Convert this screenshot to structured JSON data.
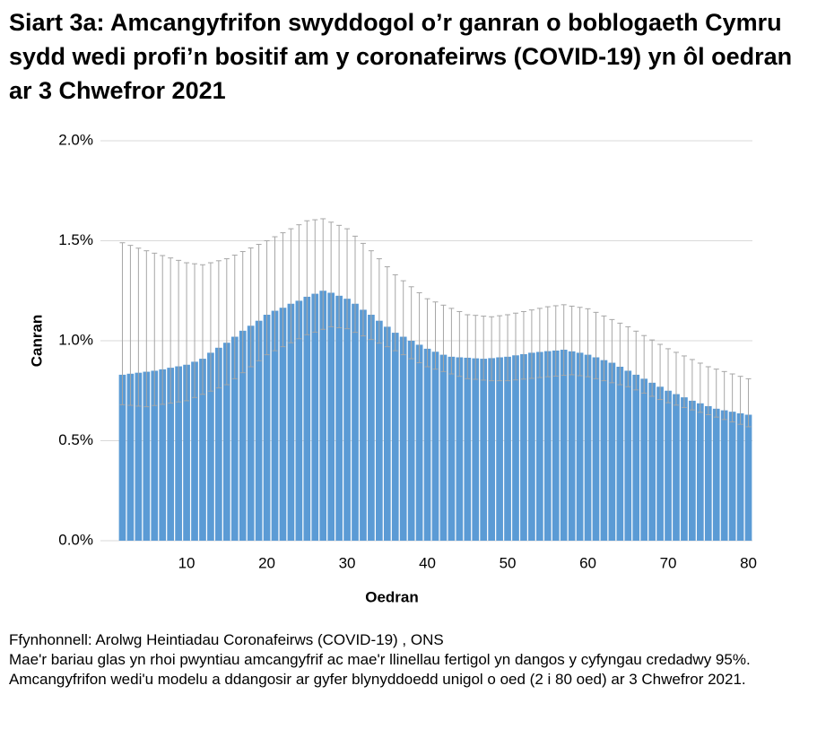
{
  "chart_data": {
    "type": "bar",
    "title": "Siart 3a: Amcangyfrifon swyddogol o’r ganran o boblogaeth Cymru sydd wedi profi’n bositif am y coronafeirws (COVID-19) yn ôl oedran ar 3 Chwefror 2021",
    "x_label": "Oedran",
    "y_label": "Canran",
    "source": "Ffynhonnell: Arolwg Heintiadau Coronafeirws (COVID-19) , ONS",
    "note": "Mae'r bariau glas yn rhoi pwyntiau amcangyfrif ac mae'r llinellau fertigol yn dangos y cyfyngau credadwy 95%. Amcangyfrifon wedi'u modelu a ddangosir ar gyfer blynyddoedd unigol o oed (2 i 80 oed) ar 3 Chwefror 2021.",
    "color": "#5b9bd5",
    "error_color": "#a6a6a6",
    "grid": true,
    "x": [
      2,
      3,
      4,
      5,
      6,
      7,
      8,
      9,
      10,
      11,
      12,
      13,
      14,
      15,
      16,
      17,
      18,
      19,
      20,
      21,
      22,
      23,
      24,
      25,
      26,
      27,
      28,
      29,
      30,
      31,
      32,
      33,
      34,
      35,
      36,
      37,
      38,
      39,
      40,
      41,
      42,
      43,
      44,
      45,
      46,
      47,
      48,
      49,
      50,
      51,
      52,
      53,
      54,
      55,
      56,
      57,
      58,
      59,
      60,
      61,
      62,
      63,
      64,
      65,
      66,
      67,
      68,
      69,
      70,
      71,
      72,
      73,
      74,
      75,
      76,
      77,
      78,
      79,
      80
    ],
    "values": [
      0.83,
      0.835,
      0.84,
      0.845,
      0.85,
      0.857,
      0.865,
      0.872,
      0.88,
      0.895,
      0.91,
      0.94,
      0.965,
      0.99,
      1.02,
      1.05,
      1.075,
      1.1,
      1.13,
      1.15,
      1.165,
      1.185,
      1.2,
      1.22,
      1.235,
      1.25,
      1.24,
      1.225,
      1.21,
      1.185,
      1.155,
      1.13,
      1.1,
      1.07,
      1.04,
      1.02,
      1.0,
      0.98,
      0.96,
      0.945,
      0.93,
      0.92,
      0.917,
      0.915,
      0.912,
      0.91,
      0.913,
      0.917,
      0.92,
      0.927,
      0.933,
      0.94,
      0.944,
      0.948,
      0.951,
      0.955,
      0.947,
      0.94,
      0.93,
      0.917,
      0.903,
      0.89,
      0.87,
      0.85,
      0.83,
      0.81,
      0.79,
      0.77,
      0.75,
      0.733,
      0.717,
      0.7,
      0.687,
      0.673,
      0.66,
      0.652,
      0.645,
      0.637,
      0.63
    ],
    "ci_lower": [
      0.68,
      0.677,
      0.673,
      0.67,
      0.676,
      0.682,
      0.688,
      0.694,
      0.7,
      0.716,
      0.732,
      0.748,
      0.764,
      0.78,
      0.81,
      0.84,
      0.87,
      0.9,
      0.93,
      0.95,
      0.97,
      0.99,
      1.01,
      1.03,
      1.043,
      1.057,
      1.07,
      1.065,
      1.06,
      1.042,
      1.024,
      1.006,
      0.988,
      0.97,
      0.95,
      0.93,
      0.91,
      0.89,
      0.87,
      0.858,
      0.846,
      0.834,
      0.822,
      0.81,
      0.807,
      0.803,
      0.8,
      0.8,
      0.8,
      0.804,
      0.808,
      0.812,
      0.816,
      0.82,
      0.823,
      0.827,
      0.83,
      0.825,
      0.82,
      0.81,
      0.8,
      0.79,
      0.78,
      0.77,
      0.754,
      0.738,
      0.722,
      0.706,
      0.69,
      0.678,
      0.666,
      0.654,
      0.642,
      0.63,
      0.618,
      0.606,
      0.594,
      0.582,
      0.57
    ],
    "ci_upper": [
      1.49,
      1.477,
      1.463,
      1.45,
      1.438,
      1.426,
      1.414,
      1.402,
      1.39,
      1.385,
      1.38,
      1.39,
      1.4,
      1.41,
      1.428,
      1.446,
      1.464,
      1.482,
      1.5,
      1.52,
      1.54,
      1.56,
      1.58,
      1.6,
      1.605,
      1.61,
      1.593,
      1.577,
      1.56,
      1.523,
      1.487,
      1.45,
      1.41,
      1.37,
      1.33,
      1.3,
      1.27,
      1.24,
      1.21,
      1.194,
      1.178,
      1.162,
      1.146,
      1.13,
      1.127,
      1.123,
      1.12,
      1.125,
      1.13,
      1.138,
      1.146,
      1.154,
      1.162,
      1.17,
      1.175,
      1.18,
      1.173,
      1.167,
      1.16,
      1.142,
      1.124,
      1.106,
      1.088,
      1.07,
      1.048,
      1.026,
      1.004,
      0.982,
      0.96,
      0.942,
      0.924,
      0.906,
      0.888,
      0.87,
      0.858,
      0.846,
      0.834,
      0.822,
      0.81
    ],
    "xlim": [
      1.5,
      80.5
    ],
    "xticks": [
      10,
      20,
      30,
      40,
      50,
      60,
      70,
      80
    ],
    "ylim": [
      0,
      2
    ],
    "yticks": [
      {
        "value": 0,
        "label": "0.0%"
      },
      {
        "value": 0.5,
        "label": "0.5%"
      },
      {
        "value": 1,
        "label": "1.0%"
      },
      {
        "value": 1.5,
        "label": "1.5%"
      },
      {
        "value": 2,
        "label": "2.0%"
      }
    ]
  }
}
